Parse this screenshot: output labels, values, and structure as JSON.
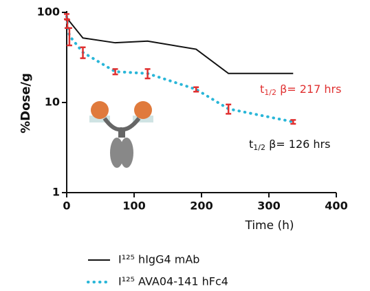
{
  "chart_data": {
    "type": "line",
    "y_label": "%Dose/g",
    "x_label": "Time (h)",
    "xlim": [
      0,
      400
    ],
    "xticks": [
      0,
      100,
      200,
      300,
      400
    ],
    "ylim": [
      1,
      100
    ],
    "yticks": [
      1,
      10,
      100
    ],
    "log_y": true,
    "series": [
      {
        "name": "I¹²⁵ hIgG4 mAb",
        "color": "#111111",
        "style": "solid",
        "x": [
          0,
          1,
          24,
          72,
          120,
          192,
          240,
          336
        ],
        "values": [
          95,
          85,
          52,
          46,
          48,
          39,
          21,
          21
        ]
      },
      {
        "name": "I¹²⁵ AVA04-141 hFc4",
        "color": "#29b6d8",
        "style": "dotted",
        "error_color": "#e03030",
        "x": [
          0,
          1,
          4,
          24,
          72,
          120,
          192,
          240,
          336
        ],
        "values": [
          90,
          75,
          55,
          36,
          22,
          21,
          14,
          8.5,
          6.1
        ],
        "errors": [
          6,
          8,
          12,
          5,
          1.5,
          2.5,
          0.8,
          1,
          0.3
        ]
      }
    ],
    "annotations": [
      {
        "t": "t",
        "sub": "1/2",
        "rest": " β= 217 hrs",
        "color": "#e03030"
      },
      {
        "t": "t",
        "sub": "1/2",
        "rest": " β= 126 hrs",
        "color": "#111111"
      }
    ]
  }
}
